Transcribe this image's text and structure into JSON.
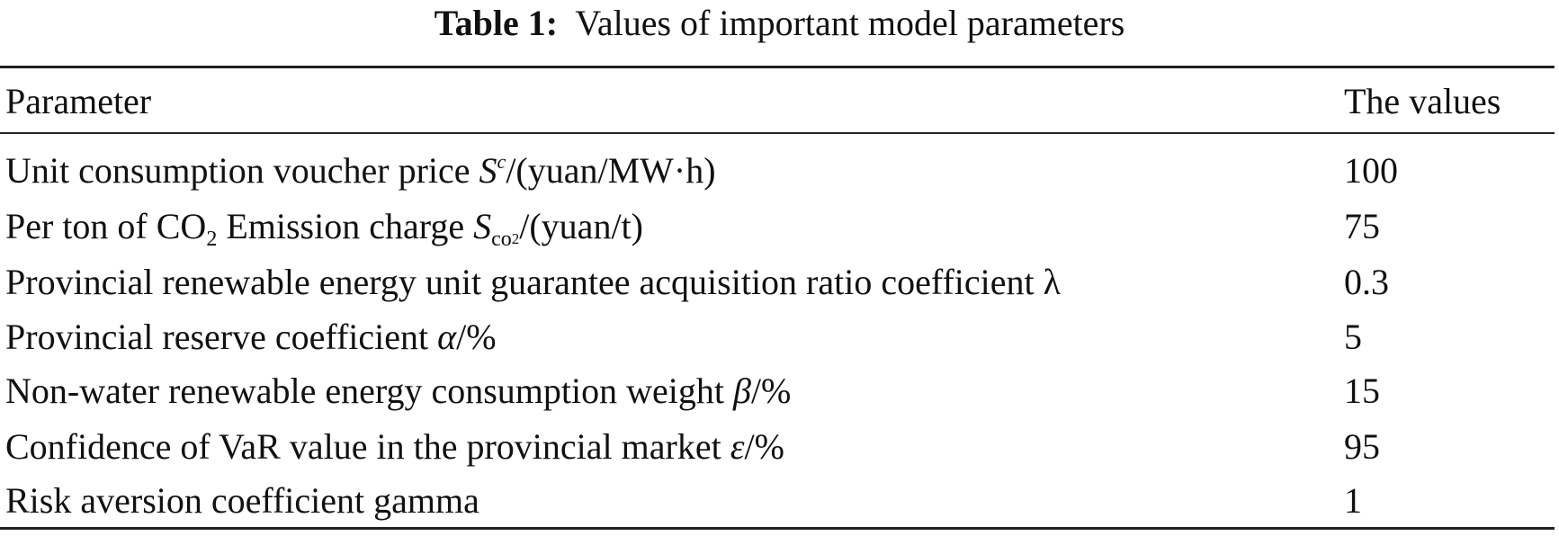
{
  "caption": {
    "label": "Table 1:",
    "text": "Values of important model parameters"
  },
  "table": {
    "header": [
      "Parameter",
      "The values"
    ],
    "rows": [
      {
        "parameter": [
          "Unit consumption voucher price ",
          "S",
          "c",
          "/(yuan/MW·h)"
        ],
        "value": 100
      },
      {
        "parameter": [
          "Per ton of CO",
          "2",
          " Emission charge ",
          "S",
          "co",
          "2",
          "/(yuan/t)"
        ],
        "value": 75
      },
      {
        "parameter": [
          "Provincial renewable energy unit guarantee acquisition ratio coefficient λ"
        ],
        "value": 0.3
      },
      {
        "parameter": [
          "Provincial reserve coefficient ",
          "α",
          "/%"
        ],
        "value": 5
      },
      {
        "parameter": [
          "Non-water renewable energy consumption weight ",
          "β",
          "/%"
        ],
        "value": 15
      },
      {
        "parameter": [
          "Confidence of VaR value in the provincial market ",
          "ε",
          "/%"
        ],
        "value": 95
      },
      {
        "parameter": [
          "Risk aversion coefficient gamma"
        ],
        "value": 1
      }
    ]
  }
}
